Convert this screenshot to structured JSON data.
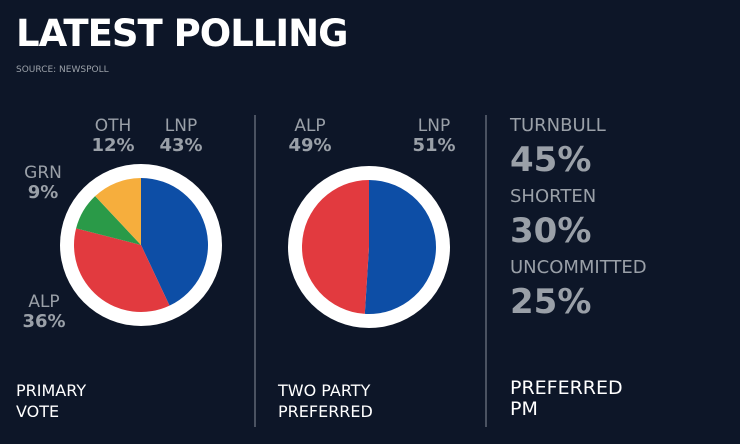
{
  "title": "LATEST POLLING",
  "source": "SOURCE: NEWSPOLL",
  "chart_data": [
    {
      "type": "pie",
      "title": "PRIMARY VOTE",
      "categories": [
        "LNP",
        "ALP",
        "GRN",
        "OTH"
      ],
      "values": [
        43,
        36,
        9,
        12
      ],
      "value_labels": [
        "43%",
        "36%",
        "9%",
        "12%"
      ],
      "colors": [
        "#0d4ea6",
        "#e23a3f",
        "#2a9a48",
        "#f6ae3d"
      ]
    },
    {
      "type": "pie",
      "title": "TWO PARTY PREFERRED",
      "categories": [
        "LNP",
        "ALP"
      ],
      "values": [
        51,
        49
      ],
      "value_labels": [
        "51%",
        "49%"
      ],
      "colors": [
        "#0d4ea6",
        "#e23a3f"
      ]
    }
  ],
  "preferred_pm": {
    "title": "PREFERRED PM",
    "items": [
      {
        "name": "TURNBULL",
        "value_label": "45%"
      },
      {
        "name": "SHORTEN",
        "value_label": "30%"
      },
      {
        "name": "UNCOMMITTED",
        "value_label": "25%"
      }
    ]
  }
}
